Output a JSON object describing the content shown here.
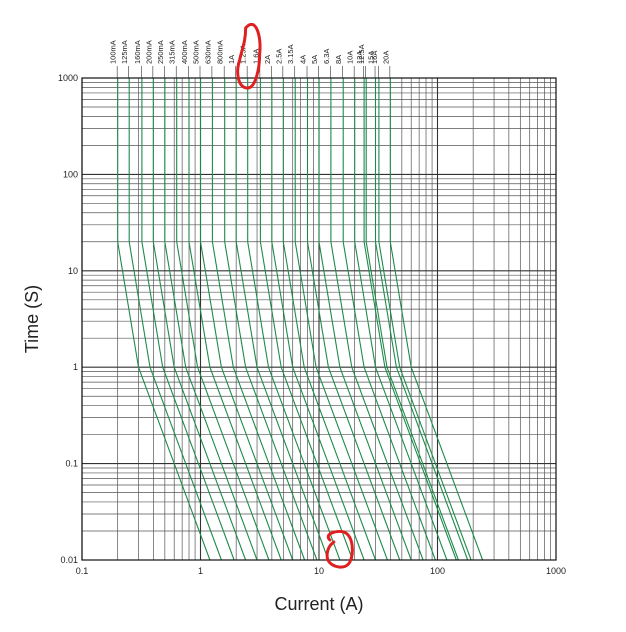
{
  "chart_data": {
    "type": "line",
    "title": "",
    "xlabel": "Current (A)",
    "ylabel": "Time (S)",
    "x_scale": "log",
    "y_scale": "log",
    "xlim": [
      0.1,
      1000
    ],
    "ylim": [
      0.01,
      1000
    ],
    "x_ticks": [
      "0.1",
      "1",
      "10",
      "100",
      "1000"
    ],
    "y_ticks": [
      "1000",
      "100",
      "10",
      "1",
      "0.1",
      "0.01"
    ],
    "grid": true,
    "line_color": "#1e8a4a",
    "series": [
      {
        "name": "100mA",
        "points": [
          [
            0.2,
            1000
          ],
          [
            0.2,
            20
          ],
          [
            0.3,
            1
          ],
          [
            0.6,
            0.1
          ],
          [
            1.2,
            0.01
          ]
        ]
      },
      {
        "name": "125mA",
        "points": [
          [
            0.25,
            1000
          ],
          [
            0.25,
            20
          ],
          [
            0.375,
            1
          ],
          [
            0.75,
            0.1
          ],
          [
            1.5,
            0.01
          ]
        ]
      },
      {
        "name": "160mA",
        "points": [
          [
            0.32,
            1000
          ],
          [
            0.32,
            20
          ],
          [
            0.48,
            1
          ],
          [
            0.96,
            0.1
          ],
          [
            1.92,
            0.01
          ]
        ]
      },
      {
        "name": "200mA",
        "points": [
          [
            0.4,
            1000
          ],
          [
            0.4,
            20
          ],
          [
            0.6,
            1
          ],
          [
            1.2,
            0.1
          ],
          [
            2.4,
            0.01
          ]
        ]
      },
      {
        "name": "250mA",
        "points": [
          [
            0.5,
            1000
          ],
          [
            0.5,
            20
          ],
          [
            0.75,
            1
          ],
          [
            1.5,
            0.1
          ],
          [
            3.0,
            0.01
          ]
        ]
      },
      {
        "name": "315mA",
        "points": [
          [
            0.63,
            1000
          ],
          [
            0.63,
            20
          ],
          [
            0.945,
            1
          ],
          [
            1.89,
            0.1
          ],
          [
            3.78,
            0.01
          ]
        ]
      },
      {
        "name": "400mA",
        "points": [
          [
            0.8,
            1000
          ],
          [
            0.8,
            20
          ],
          [
            1.2,
            1
          ],
          [
            2.4,
            0.1
          ],
          [
            4.8,
            0.01
          ]
        ]
      },
      {
        "name": "500mA",
        "points": [
          [
            1.0,
            1000
          ],
          [
            1.0,
            20
          ],
          [
            1.5,
            1
          ],
          [
            3.0,
            0.1
          ],
          [
            6.0,
            0.01
          ]
        ]
      },
      {
        "name": "630mA",
        "points": [
          [
            1.26,
            1000
          ],
          [
            1.26,
            20
          ],
          [
            1.89,
            1
          ],
          [
            3.78,
            0.1
          ],
          [
            7.56,
            0.01
          ]
        ]
      },
      {
        "name": "800mA",
        "points": [
          [
            1.6,
            1000
          ],
          [
            1.6,
            20
          ],
          [
            2.4,
            1
          ],
          [
            4.8,
            0.1
          ],
          [
            9.6,
            0.01
          ]
        ]
      },
      {
        "name": "1A",
        "points": [
          [
            2.0,
            1000
          ],
          [
            2.0,
            20
          ],
          [
            3.0,
            1
          ],
          [
            6.0,
            0.1
          ],
          [
            12.0,
            0.01
          ]
        ]
      },
      {
        "name": "1.25A",
        "points": [
          [
            2.5,
            1000
          ],
          [
            2.5,
            20
          ],
          [
            3.75,
            1
          ],
          [
            7.5,
            0.1
          ],
          [
            15.0,
            0.01
          ]
        ]
      },
      {
        "name": "1.6A",
        "points": [
          [
            3.2,
            1000
          ],
          [
            3.2,
            20
          ],
          [
            4.8,
            1
          ],
          [
            9.6,
            0.1
          ],
          [
            19.2,
            0.01
          ]
        ]
      },
      {
        "name": "2A",
        "points": [
          [
            4.0,
            1000
          ],
          [
            4.0,
            20
          ],
          [
            6.0,
            1
          ],
          [
            12.0,
            0.1
          ],
          [
            24.0,
            0.01
          ]
        ]
      },
      {
        "name": "2.5A",
        "points": [
          [
            5.0,
            1000
          ],
          [
            5.0,
            20
          ],
          [
            7.5,
            1
          ],
          [
            15.0,
            0.1
          ],
          [
            30.0,
            0.01
          ]
        ]
      },
      {
        "name": "3.15A",
        "points": [
          [
            6.3,
            1000
          ],
          [
            6.3,
            20
          ],
          [
            9.45,
            1
          ],
          [
            18.9,
            0.1
          ],
          [
            37.8,
            0.01
          ]
        ]
      },
      {
        "name": "4A",
        "points": [
          [
            8.0,
            1000
          ],
          [
            8.0,
            20
          ],
          [
            12.0,
            1
          ],
          [
            24.0,
            0.1
          ],
          [
            48.0,
            0.01
          ]
        ]
      },
      {
        "name": "5A",
        "points": [
          [
            10.0,
            1000
          ],
          [
            10.0,
            20
          ],
          [
            15.0,
            1
          ],
          [
            30.0,
            0.1
          ],
          [
            60.0,
            0.01
          ]
        ]
      },
      {
        "name": "6.3A",
        "points": [
          [
            12.6,
            1000
          ],
          [
            12.6,
            20
          ],
          [
            18.9,
            1
          ],
          [
            37.8,
            0.1
          ],
          [
            75.6,
            0.01
          ]
        ]
      },
      {
        "name": "8A",
        "points": [
          [
            16.0,
            1000
          ],
          [
            16.0,
            20
          ],
          [
            24.0,
            1
          ],
          [
            48.0,
            0.1
          ],
          [
            96.0,
            0.01
          ]
        ]
      },
      {
        "name": "10A",
        "points": [
          [
            20.0,
            1000
          ],
          [
            20.0,
            20
          ],
          [
            30.0,
            1
          ],
          [
            60.0,
            0.1
          ],
          [
            120.0,
            0.01
          ]
        ]
      },
      {
        "name": "12A",
        "points": [
          [
            24.0,
            1000
          ],
          [
            24.0,
            20
          ],
          [
            36.0,
            1
          ],
          [
            72.0,
            0.1
          ],
          [
            144.0,
            0.01
          ]
        ]
      },
      {
        "name": "12.5A",
        "points": [
          [
            25.0,
            1000
          ],
          [
            25.0,
            20
          ],
          [
            37.5,
            1
          ],
          [
            75.0,
            0.1
          ],
          [
            150.0,
            0.01
          ]
        ]
      },
      {
        "name": "15A",
        "points": [
          [
            30.0,
            1000
          ],
          [
            30.0,
            20
          ],
          [
            45.0,
            1
          ],
          [
            90.0,
            0.1
          ],
          [
            180.0,
            0.01
          ]
        ]
      },
      {
        "name": "16A",
        "points": [
          [
            32.0,
            1000
          ],
          [
            32.0,
            20
          ],
          [
            48.0,
            1
          ],
          [
            96.0,
            0.1
          ],
          [
            192.0,
            0.01
          ]
        ]
      },
      {
        "name": "20A",
        "points": [
          [
            40.0,
            1000
          ],
          [
            40.0,
            20
          ],
          [
            60.0,
            1
          ],
          [
            120.0,
            0.1
          ],
          [
            240.0,
            0.01
          ]
        ]
      }
    ],
    "annotations": [
      {
        "type": "hand-drawn-circle",
        "color": "#e02020",
        "target": "1.25A"
      },
      {
        "type": "hand-drawn-circle",
        "color": "#e02020",
        "target": "current 10–20 A at 0.01 s"
      }
    ]
  }
}
